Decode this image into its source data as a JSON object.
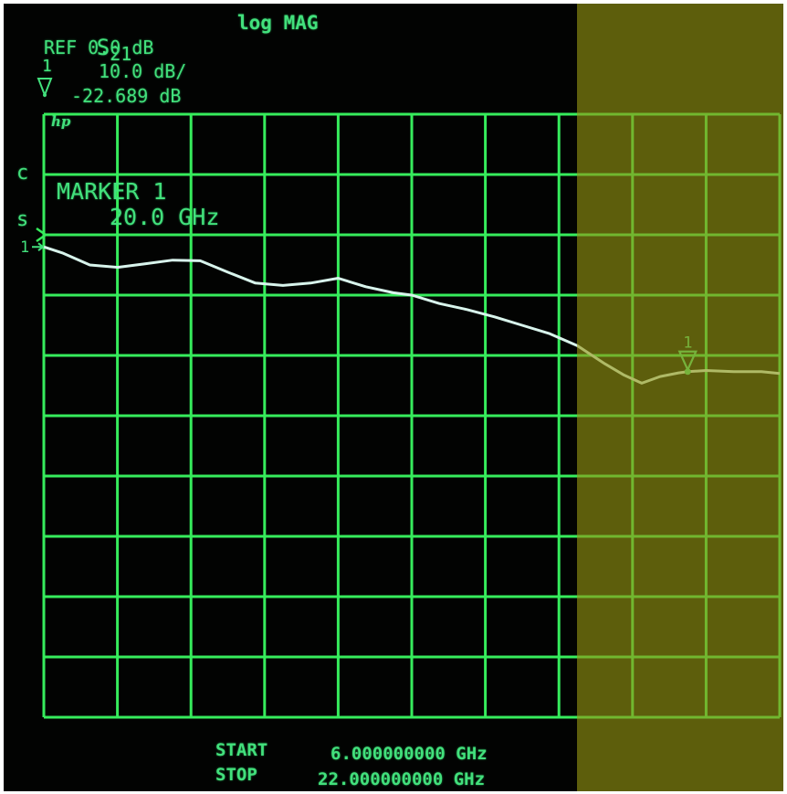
{
  "header": {
    "param_main": "S",
    "param_sub": "21",
    "format": "log MAG",
    "ref": "REF 0.0 dB",
    "marker_glyph_num": "1",
    "scale": "10.0 dB/",
    "marker_value": "-22.689 dB",
    "logo": "hp",
    "status_c": "c",
    "status_s": "s"
  },
  "marker": {
    "title": "MARKER 1",
    "freq": "20.0 GHz",
    "label": "1"
  },
  "footer": {
    "start_label": "START",
    "start_value": "6.000000000 GHz",
    "stop_label": "STOP",
    "stop_value": "22.000000000 GHz"
  },
  "colors": {
    "grid": "#36ec5c",
    "text": "#42e07c",
    "trace": "#d8f4ec",
    "screen": "#020302",
    "highlight": "#969614"
  },
  "icons": {
    "reference_position": "reference-chevron-icon",
    "marker_indicator": "marker-triangle-icon",
    "trace_reference": "trace-arrow-icon"
  },
  "chart_data": {
    "type": "line",
    "x_unit": "GHz",
    "y_unit": "dB",
    "xlim": [
      6,
      22
    ],
    "ylim": [
      -80,
      20
    ],
    "grid": true,
    "grid_divisions_x": 10,
    "grid_divisions_y": 10,
    "reference_level_db": 0,
    "scale_db_per_div": 10,
    "marker": {
      "label": "1",
      "x": 20.0,
      "y": -22.689
    },
    "series": [
      {
        "x": [
          6.0,
          6.4,
          7.0,
          7.6,
          8.2,
          8.8,
          9.4,
          10.0,
          10.6,
          11.2,
          11.8,
          12.4,
          13.0,
          13.6,
          14.0,
          14.6,
          15.2,
          15.8,
          16.4,
          17.0,
          17.6,
          18.2,
          18.6,
          19.0,
          19.4,
          19.8,
          20.0,
          20.4,
          21.0,
          21.6,
          22.0
        ],
        "y": [
          -2.0,
          -3.0,
          -5.0,
          -5.4,
          -4.8,
          -4.2,
          -4.3,
          -6.2,
          -8.0,
          -8.4,
          -8.0,
          -7.2,
          -8.6,
          -9.6,
          -10.0,
          -11.4,
          -12.4,
          -13.6,
          -15.0,
          -16.4,
          -18.4,
          -21.4,
          -23.2,
          -24.6,
          -23.5,
          -22.9,
          -22.7,
          -22.5,
          -22.7,
          -22.7,
          -23.0
        ]
      }
    ]
  }
}
